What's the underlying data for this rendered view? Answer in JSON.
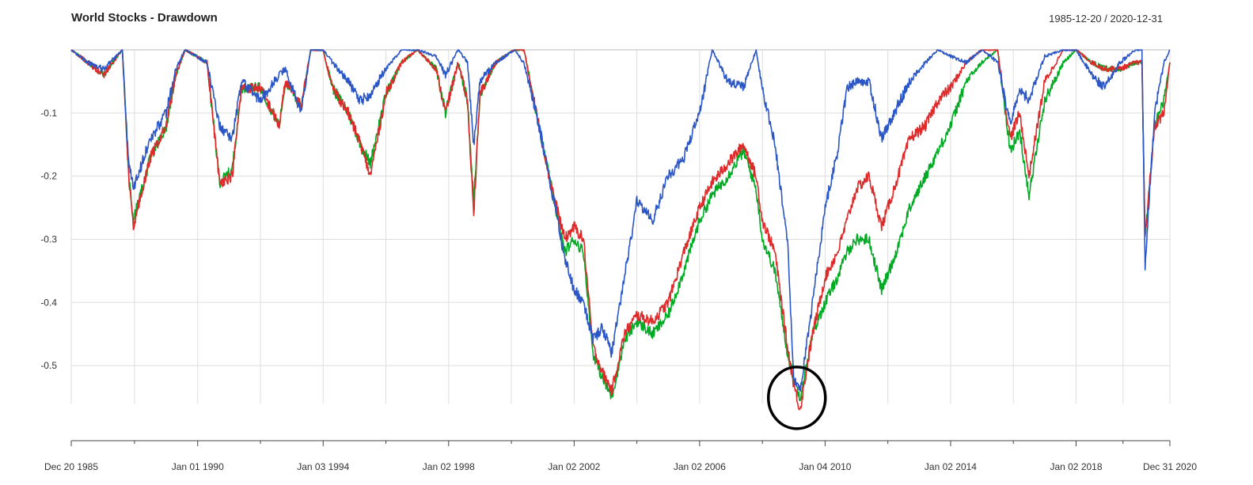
{
  "chart_data": {
    "type": "line",
    "title": "World Stocks - Drawdown",
    "date_range": "1985-12-20 / 2020-12-31",
    "xlabel": "",
    "ylabel": "",
    "y_ticks": [
      "-0.1",
      "-0.2",
      "-0.3",
      "-0.4",
      "-0.5"
    ],
    "y_tick_values": [
      -0.1,
      -0.2,
      -0.3,
      -0.4,
      -0.5
    ],
    "ylim": [
      -0.56,
      0.0
    ],
    "x_tick_labels": [
      "Dec 20 1985",
      "Jan 01 1990",
      "Jan 03 1994",
      "Jan 02 1998",
      "Jan 02 2002",
      "Jan 02 2006",
      "Jan 04 2010",
      "Jan 02 2014",
      "Jan 02 2018",
      "Dec 31 2020"
    ],
    "x_tick_years": [
      1985.97,
      1990.0,
      1994.0,
      1998.0,
      2002.0,
      2006.0,
      2010.0,
      2014.0,
      2018.0,
      2020.99
    ],
    "xlim": [
      1985.97,
      2020.99
    ],
    "grid": true,
    "series": [
      {
        "color": "#00aa22",
        "points": [
          [
            1985.97,
            0.0
          ],
          [
            1986.5,
            -0.02
          ],
          [
            1987.0,
            -0.04
          ],
          [
            1987.6,
            0.0
          ],
          [
            1987.8,
            -0.2
          ],
          [
            1987.95,
            -0.27
          ],
          [
            1988.5,
            -0.17
          ],
          [
            1989.0,
            -0.12
          ],
          [
            1989.3,
            -0.04
          ],
          [
            1989.6,
            0.0
          ],
          [
            1990.3,
            -0.02
          ],
          [
            1990.7,
            -0.21
          ],
          [
            1991.1,
            -0.19
          ],
          [
            1991.4,
            -0.06
          ],
          [
            1992.0,
            -0.06
          ],
          [
            1992.6,
            -0.12
          ],
          [
            1992.8,
            -0.05
          ],
          [
            1993.3,
            -0.09
          ],
          [
            1993.6,
            0.0
          ],
          [
            1994.0,
            0.0
          ],
          [
            1994.3,
            -0.06
          ],
          [
            1994.8,
            -0.1
          ],
          [
            1995.2,
            -0.15
          ],
          [
            1995.5,
            -0.18
          ],
          [
            1996.0,
            -0.07
          ],
          [
            1996.5,
            -0.02
          ],
          [
            1997.0,
            0.0
          ],
          [
            1997.6,
            -0.03
          ],
          [
            1997.9,
            -0.1
          ],
          [
            1998.3,
            -0.02
          ],
          [
            1998.6,
            -0.08
          ],
          [
            1998.8,
            -0.24
          ],
          [
            1999.0,
            -0.07
          ],
          [
            1999.5,
            -0.02
          ],
          [
            2000.1,
            0.0
          ],
          [
            2000.4,
            0.0
          ],
          [
            2000.8,
            -0.1
          ],
          [
            2001.2,
            -0.2
          ],
          [
            2001.7,
            -0.32
          ],
          [
            2002.0,
            -0.3
          ],
          [
            2002.3,
            -0.32
          ],
          [
            2002.6,
            -0.48
          ],
          [
            2002.9,
            -0.52
          ],
          [
            2003.2,
            -0.55
          ],
          [
            2003.6,
            -0.46
          ],
          [
            2004.0,
            -0.43
          ],
          [
            2004.5,
            -0.45
          ],
          [
            2005.0,
            -0.42
          ],
          [
            2005.5,
            -0.35
          ],
          [
            2006.0,
            -0.27
          ],
          [
            2006.4,
            -0.23
          ],
          [
            2006.9,
            -0.2
          ],
          [
            2007.4,
            -0.16
          ],
          [
            2007.8,
            -0.22
          ],
          [
            2008.0,
            -0.3
          ],
          [
            2008.4,
            -0.35
          ],
          [
            2008.8,
            -0.48
          ],
          [
            2009.0,
            -0.52
          ],
          [
            2009.2,
            -0.55
          ],
          [
            2009.6,
            -0.45
          ],
          [
            2010.0,
            -0.4
          ],
          [
            2010.4,
            -0.36
          ],
          [
            2010.7,
            -0.32
          ],
          [
            2011.0,
            -0.3
          ],
          [
            2011.4,
            -0.3
          ],
          [
            2011.8,
            -0.38
          ],
          [
            2012.2,
            -0.33
          ],
          [
            2012.7,
            -0.25
          ],
          [
            2013.2,
            -0.2
          ],
          [
            2013.6,
            -0.16
          ],
          [
            2014.0,
            -0.12
          ],
          [
            2014.5,
            -0.05
          ],
          [
            2015.0,
            -0.02
          ],
          [
            2015.5,
            0.0
          ],
          [
            2015.9,
            -0.16
          ],
          [
            2016.2,
            -0.13
          ],
          [
            2016.5,
            -0.23
          ],
          [
            2017.0,
            -0.08
          ],
          [
            2017.6,
            -0.02
          ],
          [
            2018.0,
            0.0
          ],
          [
            2018.5,
            -0.02
          ],
          [
            2018.9,
            -0.03
          ],
          [
            2019.4,
            -0.03
          ],
          [
            2019.9,
            -0.02
          ],
          [
            2020.1,
            -0.02
          ],
          [
            2020.2,
            -0.3
          ],
          [
            2020.5,
            -0.12
          ],
          [
            2020.8,
            -0.08
          ],
          [
            2020.99,
            -0.02
          ]
        ]
      },
      {
        "color": "#dd2a2a",
        "points": [
          [
            1985.97,
            0.0
          ],
          [
            1986.5,
            -0.02
          ],
          [
            1987.0,
            -0.04
          ],
          [
            1987.6,
            0.0
          ],
          [
            1987.8,
            -0.2
          ],
          [
            1987.95,
            -0.28
          ],
          [
            1988.5,
            -0.17
          ],
          [
            1989.0,
            -0.12
          ],
          [
            1989.3,
            -0.04
          ],
          [
            1989.6,
            0.0
          ],
          [
            1990.3,
            -0.02
          ],
          [
            1990.7,
            -0.21
          ],
          [
            1991.1,
            -0.2
          ],
          [
            1991.4,
            -0.06
          ],
          [
            1992.0,
            -0.06
          ],
          [
            1992.6,
            -0.12
          ],
          [
            1992.8,
            -0.05
          ],
          [
            1993.3,
            -0.09
          ],
          [
            1993.6,
            0.0
          ],
          [
            1994.0,
            0.0
          ],
          [
            1994.3,
            -0.06
          ],
          [
            1994.8,
            -0.1
          ],
          [
            1995.2,
            -0.15
          ],
          [
            1995.5,
            -0.2
          ],
          [
            1996.0,
            -0.07
          ],
          [
            1996.5,
            -0.02
          ],
          [
            1997.0,
            0.0
          ],
          [
            1997.6,
            -0.03
          ],
          [
            1997.9,
            -0.1
          ],
          [
            1998.3,
            -0.02
          ],
          [
            1998.6,
            -0.08
          ],
          [
            1998.8,
            -0.26
          ],
          [
            1999.0,
            -0.07
          ],
          [
            1999.5,
            -0.02
          ],
          [
            2000.1,
            0.0
          ],
          [
            2000.4,
            0.0
          ],
          [
            2000.8,
            -0.1
          ],
          [
            2001.2,
            -0.2
          ],
          [
            2001.7,
            -0.3
          ],
          [
            2002.0,
            -0.28
          ],
          [
            2002.3,
            -0.3
          ],
          [
            2002.6,
            -0.47
          ],
          [
            2002.9,
            -0.51
          ],
          [
            2003.2,
            -0.54
          ],
          [
            2003.6,
            -0.45
          ],
          [
            2004.0,
            -0.42
          ],
          [
            2004.5,
            -0.43
          ],
          [
            2005.0,
            -0.4
          ],
          [
            2005.5,
            -0.32
          ],
          [
            2006.0,
            -0.25
          ],
          [
            2006.4,
            -0.21
          ],
          [
            2006.9,
            -0.18
          ],
          [
            2007.4,
            -0.15
          ],
          [
            2007.8,
            -0.2
          ],
          [
            2008.0,
            -0.27
          ],
          [
            2008.4,
            -0.32
          ],
          [
            2008.8,
            -0.47
          ],
          [
            2009.0,
            -0.53
          ],
          [
            2009.2,
            -0.57
          ],
          [
            2009.6,
            -0.45
          ],
          [
            2010.0,
            -0.36
          ],
          [
            2010.4,
            -0.32
          ],
          [
            2010.7,
            -0.27
          ],
          [
            2011.0,
            -0.22
          ],
          [
            2011.4,
            -0.2
          ],
          [
            2011.8,
            -0.28
          ],
          [
            2012.2,
            -0.22
          ],
          [
            2012.7,
            -0.14
          ],
          [
            2013.2,
            -0.12
          ],
          [
            2013.6,
            -0.08
          ],
          [
            2014.0,
            -0.06
          ],
          [
            2014.5,
            -0.02
          ],
          [
            2015.0,
            0.0
          ],
          [
            2015.5,
            0.0
          ],
          [
            2015.9,
            -0.14
          ],
          [
            2016.2,
            -0.1
          ],
          [
            2016.5,
            -0.2
          ],
          [
            2017.0,
            -0.05
          ],
          [
            2017.6,
            0.0
          ],
          [
            2018.0,
            0.0
          ],
          [
            2018.5,
            -0.02
          ],
          [
            2018.9,
            -0.03
          ],
          [
            2019.4,
            -0.03
          ],
          [
            2019.9,
            -0.02
          ],
          [
            2020.1,
            -0.02
          ],
          [
            2020.2,
            -0.3
          ],
          [
            2020.5,
            -0.12
          ],
          [
            2020.8,
            -0.1
          ],
          [
            2020.99,
            -0.02
          ]
        ]
      },
      {
        "color": "#2a56c6",
        "points": [
          [
            1985.97,
            0.0
          ],
          [
            1986.5,
            -0.02
          ],
          [
            1987.0,
            -0.03
          ],
          [
            1987.6,
            0.0
          ],
          [
            1987.8,
            -0.18
          ],
          [
            1987.95,
            -0.22
          ],
          [
            1988.5,
            -0.14
          ],
          [
            1989.0,
            -0.1
          ],
          [
            1989.3,
            -0.03
          ],
          [
            1989.6,
            0.0
          ],
          [
            1990.3,
            -0.02
          ],
          [
            1990.7,
            -0.12
          ],
          [
            1991.1,
            -0.14
          ],
          [
            1991.4,
            -0.05
          ],
          [
            1992.0,
            -0.08
          ],
          [
            1992.6,
            -0.04
          ],
          [
            1992.8,
            -0.03
          ],
          [
            1993.3,
            -0.1
          ],
          [
            1993.6,
            0.0
          ],
          [
            1994.0,
            0.0
          ],
          [
            1994.3,
            -0.02
          ],
          [
            1994.8,
            -0.05
          ],
          [
            1995.2,
            -0.08
          ],
          [
            1995.5,
            -0.07
          ],
          [
            1996.0,
            -0.03
          ],
          [
            1996.5,
            0.0
          ],
          [
            1997.0,
            0.0
          ],
          [
            1997.6,
            -0.01
          ],
          [
            1997.9,
            -0.04
          ],
          [
            1998.3,
            0.0
          ],
          [
            1998.6,
            -0.02
          ],
          [
            1998.8,
            -0.15
          ],
          [
            1999.0,
            -0.05
          ],
          [
            1999.5,
            -0.02
          ],
          [
            2000.1,
            0.0
          ],
          [
            2000.4,
            -0.02
          ],
          [
            2000.8,
            -0.1
          ],
          [
            2001.2,
            -0.2
          ],
          [
            2001.7,
            -0.33
          ],
          [
            2002.0,
            -0.38
          ],
          [
            2002.3,
            -0.4
          ],
          [
            2002.6,
            -0.46
          ],
          [
            2002.9,
            -0.44
          ],
          [
            2003.2,
            -0.48
          ],
          [
            2003.6,
            -0.36
          ],
          [
            2004.0,
            -0.24
          ],
          [
            2004.5,
            -0.27
          ],
          [
            2005.0,
            -0.2
          ],
          [
            2005.5,
            -0.17
          ],
          [
            2006.0,
            -0.1
          ],
          [
            2006.4,
            0.0
          ],
          [
            2006.9,
            -0.05
          ],
          [
            2007.4,
            -0.06
          ],
          [
            2007.8,
            0.0
          ],
          [
            2008.0,
            -0.06
          ],
          [
            2008.4,
            -0.15
          ],
          [
            2008.8,
            -0.3
          ],
          [
            2009.0,
            -0.52
          ],
          [
            2009.2,
            -0.54
          ],
          [
            2009.6,
            -0.4
          ],
          [
            2010.0,
            -0.25
          ],
          [
            2010.4,
            -0.16
          ],
          [
            2010.7,
            -0.06
          ],
          [
            2011.0,
            -0.05
          ],
          [
            2011.4,
            -0.05
          ],
          [
            2011.8,
            -0.14
          ],
          [
            2012.2,
            -0.1
          ],
          [
            2012.7,
            -0.05
          ],
          [
            2013.2,
            -0.02
          ],
          [
            2013.6,
            0.0
          ],
          [
            2014.0,
            -0.01
          ],
          [
            2014.5,
            -0.02
          ],
          [
            2015.0,
            0.0
          ],
          [
            2015.5,
            -0.02
          ],
          [
            2015.9,
            -0.12
          ],
          [
            2016.2,
            -0.06
          ],
          [
            2016.5,
            -0.08
          ],
          [
            2017.0,
            -0.01
          ],
          [
            2017.6,
            0.0
          ],
          [
            2018.0,
            0.0
          ],
          [
            2018.5,
            -0.04
          ],
          [
            2018.9,
            -0.06
          ],
          [
            2019.4,
            -0.02
          ],
          [
            2019.9,
            0.0
          ],
          [
            2020.1,
            0.0
          ],
          [
            2020.2,
            -0.34
          ],
          [
            2020.5,
            -0.1
          ],
          [
            2020.8,
            -0.02
          ],
          [
            2020.99,
            0.0
          ]
        ]
      }
    ],
    "annotations": [
      {
        "type": "circle",
        "x": 2009.1,
        "y": -0.551,
        "color": "#000000"
      }
    ]
  }
}
